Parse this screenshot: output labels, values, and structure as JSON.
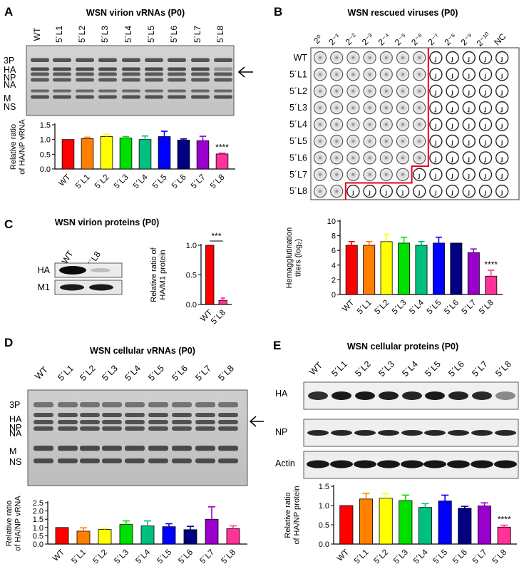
{
  "panelA": {
    "letter": "A",
    "title": "WSN virion vRNAs (P0)",
    "lanes": [
      "WT",
      "5´L1",
      "5´L2",
      "5´L3",
      "5´L4",
      "5´L5",
      "5´L6",
      "5´L7",
      "5´L8"
    ],
    "segments": [
      "3P",
      "HA",
      "NP",
      "NA",
      "M",
      "NS"
    ]
  },
  "panelB": {
    "letter": "B",
    "title": "WSN rescued viruses (P0)",
    "columns": [
      "2⁰",
      "2⁻¹",
      "2⁻²",
      "2⁻³",
      "2⁻⁴",
      "2⁻⁵",
      "2⁻⁶",
      "2⁻⁷",
      "2⁻⁸",
      "2⁻⁹",
      "2⁻¹⁰",
      "NC"
    ],
    "rows": [
      "WT",
      "5´L1",
      "5´L2",
      "5´L3",
      "5´L4",
      "5´L5",
      "5´L6",
      "5´L7",
      "5´L8"
    ],
    "positive_wells": [
      7,
      7,
      7,
      7,
      7,
      7,
      7,
      6,
      2
    ]
  },
  "panelC": {
    "letter": "C",
    "title": "WSN virion proteins (P0)",
    "lanes": [
      "WT",
      "5´L8"
    ],
    "proteins": [
      "HA",
      "M1"
    ]
  },
  "panelD": {
    "letter": "D",
    "title": "WSN cellular vRNAs (P0)",
    "lanes": [
      "WT",
      "5´L1",
      "5´L2",
      "5´L3",
      "5´L4",
      "5´L5",
      "5´L6",
      "5´L7",
      "5´L8"
    ],
    "segments": [
      "3P",
      "HA",
      "NP",
      "NA",
      "M",
      "NS"
    ]
  },
  "panelE": {
    "letter": "E",
    "title": "WSN cellular proteins (P0)",
    "lanes": [
      "WT",
      "5´L1",
      "5´L2",
      "5´L3",
      "5´L4",
      "5´L5",
      "5´L6",
      "5´L7",
      "5´L8"
    ],
    "proteins": [
      "HA",
      "NP",
      "Actin"
    ]
  },
  "colors": [
    "#ff0000",
    "#ff8000",
    "#ffff00",
    "#00e000",
    "#00c080",
    "#0000ff",
    "#000080",
    "#9900cc",
    "#ff3399"
  ],
  "chart_data": [
    {
      "id": "A",
      "type": "bar",
      "categories": [
        "WT",
        "5´L1",
        "5´L2",
        "5´L3",
        "5´L4",
        "5´L5",
        "5´L6",
        "5´L7",
        "5´L8"
      ],
      "values": [
        1.0,
        1.03,
        1.1,
        1.05,
        1.0,
        1.1,
        0.98,
        0.96,
        0.51
      ],
      "errors": [
        0,
        0.05,
        0.08,
        0.05,
        0.12,
        0.18,
        0.04,
        0.15,
        0.03
      ],
      "ylabel": "Relative ratio\nof HA/NP vRNA",
      "ylim": [
        0,
        1.5
      ],
      "yticks": [
        0.0,
        0.5,
        1.0,
        1.5
      ],
      "ytick_labels": [
        "0.0",
        "0.5",
        "1.0",
        "1.5"
      ],
      "annotation": {
        "bar": 8,
        "text": "****"
      }
    },
    {
      "id": "B",
      "type": "bar",
      "categories": [
        "WT",
        "5´L1",
        "5´L2",
        "5´L3",
        "5´L4",
        "5´L5",
        "5´L6",
        "5´L7",
        "5´L8"
      ],
      "values": [
        6.7,
        6.7,
        7.2,
        7.0,
        6.7,
        7.0,
        7.0,
        5.7,
        2.5
      ],
      "errors": [
        0.5,
        0.5,
        1.0,
        0.8,
        0.5,
        0.8,
        0,
        0.5,
        0.8
      ],
      "ylabel": "Hemagglutination\ntiters (log₂)",
      "ylim": [
        0,
        10
      ],
      "yticks": [
        0,
        2,
        4,
        6,
        8,
        10
      ],
      "ytick_labels": [
        "0",
        "2",
        "4",
        "6",
        "8",
        "10"
      ],
      "annotation": {
        "bar": 8,
        "text": "****"
      }
    },
    {
      "id": "C",
      "type": "bar",
      "categories": [
        "WT",
        "5´L8"
      ],
      "values": [
        1.0,
        0.07
      ],
      "errors": [
        0,
        0.04
      ],
      "colors": [
        "#ff0000",
        "#ff3399"
      ],
      "ylabel": "Relative ratio of\nHA/M1 protein",
      "ylim": [
        0,
        1.0
      ],
      "yticks": [
        0.0,
        0.5,
        1.0
      ],
      "ytick_labels": [
        "0.0",
        "0.5",
        "1.0"
      ],
      "significance": "***"
    },
    {
      "id": "D",
      "type": "bar",
      "categories": [
        "WT",
        "5´L1",
        "5´L2",
        "5´L3",
        "5´L4",
        "5´L5",
        "5´L6",
        "5´L7",
        "5´L8"
      ],
      "values": [
        1.0,
        0.78,
        0.88,
        1.18,
        1.1,
        1.05,
        0.87,
        1.5,
        0.93
      ],
      "errors": [
        0,
        0.2,
        0.08,
        0.22,
        0.3,
        0.18,
        0.2,
        0.75,
        0.17
      ],
      "ylabel": "Relative ratio\nof HA/NP vRNA",
      "ylim": [
        0,
        2.5
      ],
      "yticks": [
        0.0,
        0.5,
        1.0,
        1.5,
        2.0,
        2.5
      ],
      "ytick_labels": [
        "0.0",
        "0.5",
        "1.0",
        "1.5",
        "2.0",
        "2.5"
      ]
    },
    {
      "id": "E",
      "type": "bar",
      "categories": [
        "WT",
        "5´L1",
        "5´L2",
        "5´L3",
        "5´L4",
        "5´L5",
        "5´L6",
        "5´L7",
        "5´L8"
      ],
      "values": [
        1.0,
        1.17,
        1.19,
        1.13,
        0.95,
        1.12,
        0.93,
        0.99,
        0.44
      ],
      "errors": [
        0,
        0.15,
        0.12,
        0.14,
        0.1,
        0.15,
        0.05,
        0.08,
        0.05
      ],
      "ylabel": "Relative ratio\nof HA/NP protein",
      "ylim": [
        0,
        1.5
      ],
      "yticks": [
        0.0,
        0.5,
        1.0,
        1.5
      ],
      "ytick_labels": [
        "0.0",
        "0.5",
        "1.0",
        "1.5"
      ],
      "annotation": {
        "bar": 8,
        "text": "****"
      }
    }
  ]
}
